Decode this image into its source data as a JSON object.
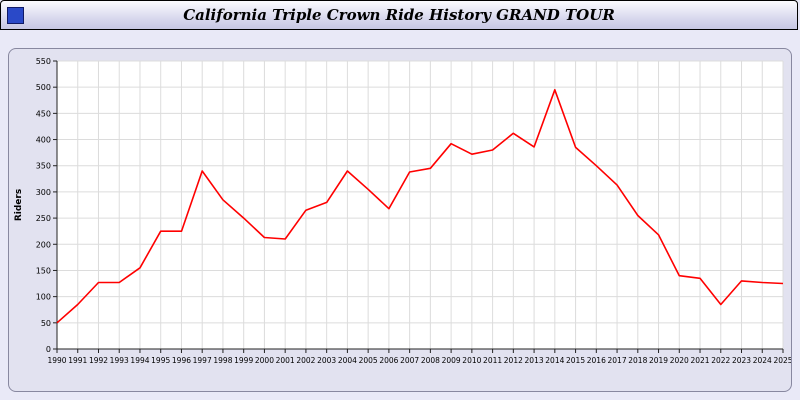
{
  "window": {
    "title": "California Triple Crown Ride History GRAND TOUR"
  },
  "chart_data": {
    "type": "line",
    "title": "California Triple Crown Ride History GRAND TOUR",
    "xlabel": "",
    "ylabel": "Riders",
    "ylim": [
      0,
      550
    ],
    "ytick_step": 50,
    "grid": true,
    "legend": "none",
    "line_color": "#ff0000",
    "x": [
      1990,
      1991,
      1992,
      1993,
      1994,
      1995,
      1996,
      1997,
      1998,
      1999,
      2000,
      2001,
      2002,
      2003,
      2004,
      2005,
      2006,
      2007,
      2008,
      2009,
      2010,
      2011,
      2012,
      2013,
      2014,
      2015,
      2016,
      2017,
      2018,
      2019,
      2020,
      2021,
      2022,
      2023,
      2024,
      2025
    ],
    "values": [
      50,
      85,
      127,
      127,
      155,
      225,
      225,
      340,
      285,
      250,
      213,
      210,
      265,
      280,
      340,
      305,
      268,
      338,
      345,
      392,
      372,
      380,
      412,
      386,
      495,
      385,
      350,
      313,
      255,
      218,
      140,
      135,
      85,
      130,
      127,
      125
    ]
  }
}
